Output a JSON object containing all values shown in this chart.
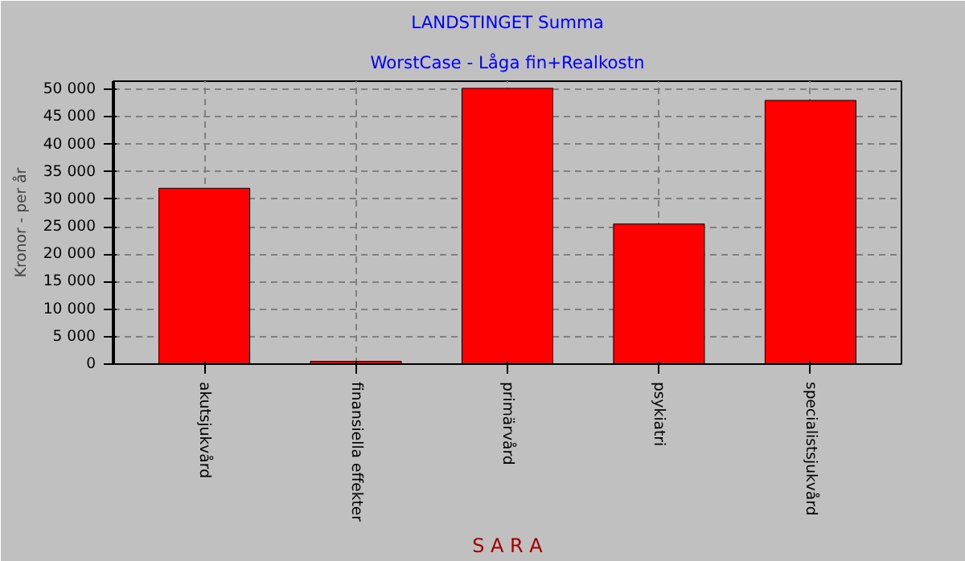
{
  "chart_data": {
    "type": "bar",
    "title": "LANDSTINGET Summa",
    "subtitle": "WorstCase - Låga fin+Realkostn",
    "ylabel": "Kronor - per år",
    "xlabel": "S A R A",
    "categories": [
      "akutsjukvård",
      "finansiella effekter",
      "primärvård",
      "psykiatri",
      "specialistsjukvård"
    ],
    "values": [
      32000,
      500,
      50200,
      25500,
      48000
    ],
    "color": "#ff0000",
    "ylim": [
      0,
      51500
    ],
    "yticks": [
      {
        "value": 0,
        "label": "0"
      },
      {
        "value": 5000,
        "label": "5 000"
      },
      {
        "value": 10000,
        "label": "10 000"
      },
      {
        "value": 15000,
        "label": "15 000"
      },
      {
        "value": 20000,
        "label": "20 000"
      },
      {
        "value": 25000,
        "label": "25 000"
      },
      {
        "value": 30000,
        "label": "30 000"
      },
      {
        "value": 35000,
        "label": "35 000"
      },
      {
        "value": 40000,
        "label": "40 000"
      },
      {
        "value": 45000,
        "label": "45 000"
      },
      {
        "value": 50000,
        "label": "50 000"
      }
    ],
    "grid": true
  }
}
